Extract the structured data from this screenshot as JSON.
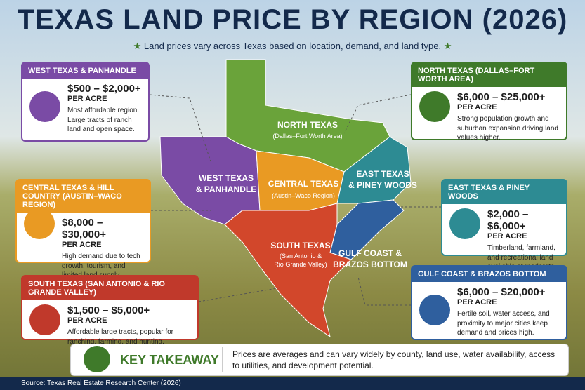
{
  "header": {
    "title": "TEXAS LAND PRICE BY REGION (2026)",
    "subtitle": "Land prices vary across Texas based on location, demand, and land type."
  },
  "cards": [
    {
      "header": "WEST TEXAS & PANHANDLE",
      "price": "$500 – $2,000+",
      "unit": "PER ACRE",
      "description": "Most affordable region. Large tracts of ranch land and open space."
    },
    {
      "header": "NORTH TEXAS (DALLAS–FORT WORTH AREA)",
      "price": "$6,000 – $25,000+",
      "unit": "PER ACRE",
      "description": "Strong population growth and suburban expansion driving land values higher."
    },
    {
      "header": "CENTRAL TEXAS & HILL COUNTRY (AUSTIN–WACO REGION)",
      "price": "$8,000 – $30,000+",
      "unit": "PER ACRE",
      "description": "High demand due to tech growth, tourism, and limited land supply."
    },
    {
      "header": "EAST TEXAS & PINEY WOODS",
      "price": "$2,000 – $6,000+",
      "unit": "PER ACRE",
      "description": "Timberland, farmland, and recreational land available at moderate prices."
    },
    {
      "header": "SOUTH TEXAS (SAN ANTONIO & RIO GRANDE VALLEY)",
      "price": "$1,500 – $5,000+",
      "unit": "PER ACRE",
      "description": "Affordable large tracts, popular for ranching, farming, and hunting."
    },
    {
      "header": "GULF COAST & BRAZOS BOTTOM",
      "price": "$6,000 – $20,000+",
      "unit": "PER ACRE",
      "description": "Fertile soil, water access, and proximity to major cities keep demand and prices high."
    }
  ],
  "map_labels": [
    {
      "lines": [
        "NORTH TEXAS",
        "(Dallas–Fort Worth Area)"
      ]
    },
    {
      "lines": [
        "WEST TEXAS",
        "& PANHANDLE"
      ]
    },
    {
      "lines": [
        "CENTRAL TEXAS",
        "(Austin–Waco Region)"
      ]
    },
    {
      "lines": [
        "EAST TEXAS",
        "& PINEY WOODS"
      ]
    },
    {
      "lines": [
        "SOUTH TEXAS",
        "(San Antonio &",
        "Rio Grande Valley)"
      ]
    },
    {
      "lines": [
        "GULF COAST &",
        "BRAZOS BOTTOM"
      ]
    }
  ],
  "takeaway": {
    "title": "KEY TAKEAWAY",
    "text": "Prices are averages and can vary widely by county, land use, water availability, access to utilities, and development potential."
  },
  "footer": {
    "source": "Source: Texas Real Estate Research Center (2026)"
  }
}
